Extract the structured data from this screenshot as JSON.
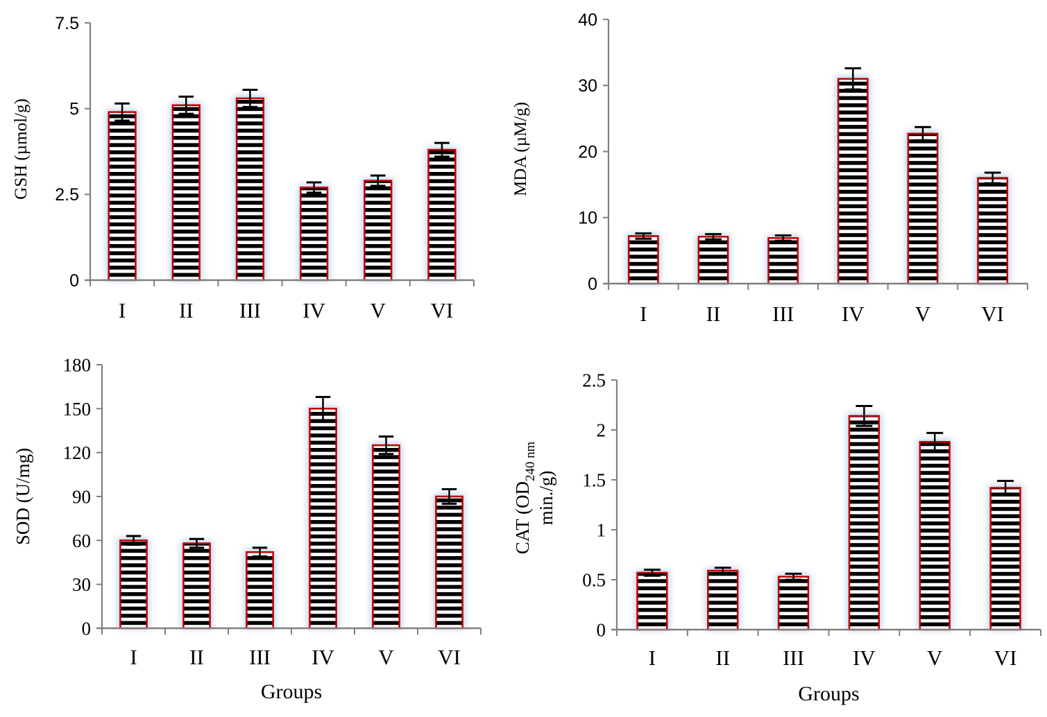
{
  "chart_data": [
    {
      "type": "bar",
      "id": "gsh",
      "title": "",
      "xlabel": "",
      "ylabel": "GSH (µmol/g)",
      "categories": [
        "I",
        "II",
        "III",
        "IV",
        "V",
        "VI"
      ],
      "values": [
        4.9,
        5.1,
        5.3,
        2.7,
        2.9,
        3.8
      ],
      "errors": [
        0.25,
        0.25,
        0.25,
        0.15,
        0.15,
        0.2
      ],
      "ylim": [
        0,
        7.5
      ],
      "yticks": [
        0,
        2.5,
        5,
        7.5
      ],
      "ytick_labels": [
        "0",
        "2.5",
        "5",
        "7.5"
      ],
      "grid": false,
      "legend": "none"
    },
    {
      "type": "bar",
      "id": "mda",
      "title": "",
      "xlabel": "",
      "ylabel": "MDA  (µM/g)",
      "categories": [
        "I",
        "II",
        "III",
        "IV",
        "V",
        "VI"
      ],
      "values": [
        7.2,
        7.1,
        6.9,
        31,
        22.7,
        16
      ],
      "errors": [
        0.4,
        0.4,
        0.4,
        1.6,
        1.0,
        0.8
      ],
      "ylim": [
        0,
        40
      ],
      "yticks": [
        0,
        10,
        20,
        30,
        40
      ],
      "ytick_labels": [
        "0",
        "10",
        "20",
        "30",
        "40"
      ],
      "grid": false,
      "legend": "none"
    },
    {
      "type": "bar",
      "id": "sod",
      "title": "",
      "xlabel": "Groups",
      "ylabel": "SOD (U/mg)",
      "categories": [
        "I",
        "II",
        "III",
        "IV",
        "V",
        "VI"
      ],
      "values": [
        60,
        58,
        52,
        150,
        125,
        90
      ],
      "errors": [
        3,
        3,
        3,
        8,
        6,
        5
      ],
      "ylim": [
        0,
        180
      ],
      "yticks": [
        0,
        30,
        60,
        90,
        120,
        150,
        180
      ],
      "ytick_labels": [
        "0",
        "30",
        "60",
        "90",
        "120",
        "150",
        "180"
      ],
      "grid": false,
      "legend": "none"
    },
    {
      "type": "bar",
      "id": "cat",
      "title": "",
      "xlabel": "Groups",
      "ylabel": "CAT (OD240 nm min./g)",
      "ylabel_parts": {
        "main": "CAT (OD",
        "subscript": "240 nm",
        "line2": "min./g)"
      },
      "categories": [
        "I",
        "II",
        "III",
        "IV",
        "V",
        "VI"
      ],
      "values": [
        0.57,
        0.59,
        0.53,
        2.14,
        1.88,
        1.42
      ],
      "errors": [
        0.03,
        0.03,
        0.03,
        0.1,
        0.09,
        0.07
      ],
      "ylim": [
        0,
        2.5
      ],
      "yticks": [
        0,
        0.5,
        1,
        1.5,
        2,
        2.5
      ],
      "ytick_labels": [
        "0",
        "0.5",
        "1",
        "1.5",
        "2",
        "2.5"
      ],
      "grid": false,
      "legend": "none"
    }
  ],
  "style": {
    "bar_outline": "#c00000",
    "bar_stripe_dark": "#000000",
    "bar_stripe_light": "#ffffff",
    "bar_glow": "#9db9e0",
    "axis_color": "#7f7f7f",
    "error_bar_color": "#000000",
    "text_color": "#000000"
  }
}
